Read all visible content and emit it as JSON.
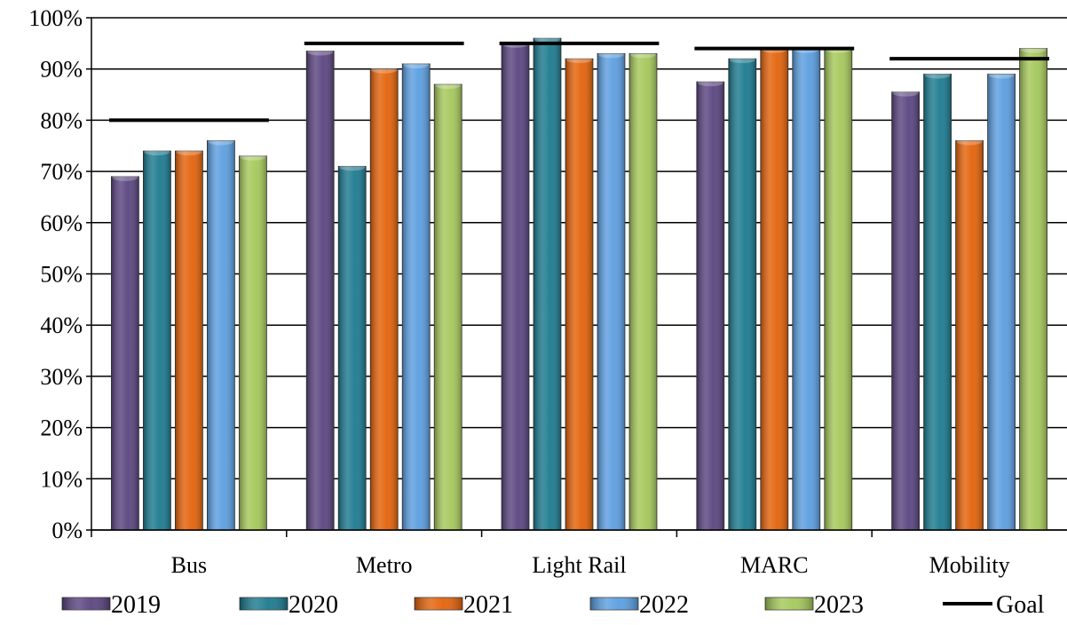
{
  "chart_data": {
    "type": "bar",
    "categories": [
      "Bus",
      "Metro",
      "Light Rail",
      "MARC",
      "Mobility"
    ],
    "series": [
      {
        "name": "2019",
        "values": [
          69,
          93.5,
          95,
          87.5,
          85.5
        ],
        "color": "#5a4480"
      },
      {
        "name": "2020",
        "values": [
          74,
          71,
          96,
          92,
          89
        ],
        "color": "#1b7a8f"
      },
      {
        "name": "2021",
        "values": [
          74,
          90,
          92,
          94,
          76
        ],
        "color": "#e36209"
      },
      {
        "name": "2022",
        "values": [
          76,
          91,
          93,
          94,
          89
        ],
        "color": "#5b9ee0"
      },
      {
        "name": "2023",
        "values": [
          73,
          87,
          93,
          94,
          94
        ],
        "color": "#a5c85a"
      }
    ],
    "goal": {
      "name": "Goal",
      "values": [
        80,
        95,
        95,
        94,
        92
      ],
      "color": "#000000"
    },
    "ylim": [
      0,
      100
    ],
    "yticks": [
      "0%",
      "10%",
      "20%",
      "30%",
      "40%",
      "50%",
      "60%",
      "70%",
      "80%",
      "90%",
      "100%"
    ],
    "grid": true,
    "legend": "bottom"
  }
}
